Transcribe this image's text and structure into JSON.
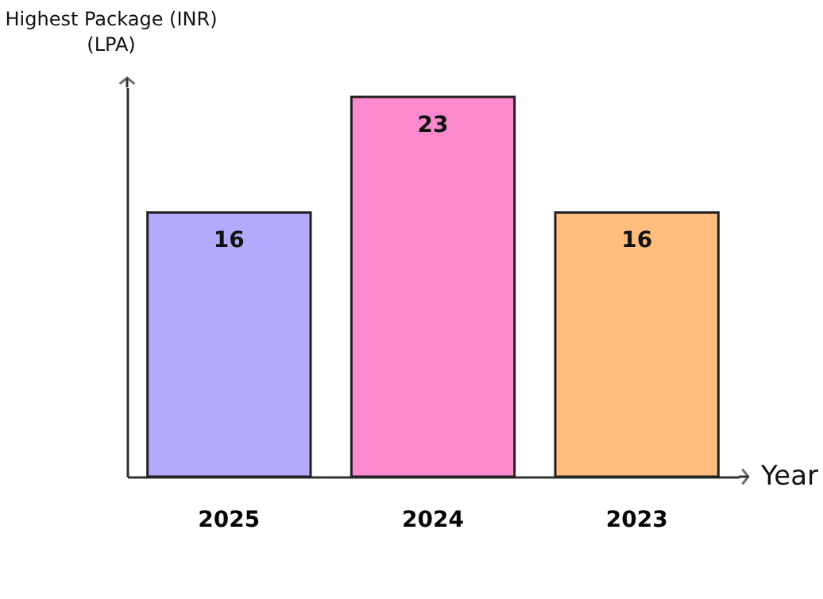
{
  "chart_data": {
    "type": "bar",
    "ylabel": "Highest Package (INR)\n(LPA)",
    "xlabel": "Year",
    "categories": [
      "2025",
      "2024",
      "2023"
    ],
    "values": [
      16,
      23,
      16
    ],
    "colors": [
      "#b3a9fd",
      "#fb89cd",
      "#ffbd7e"
    ],
    "data_labels": true,
    "grid": false,
    "tick_labels": "x"
  }
}
